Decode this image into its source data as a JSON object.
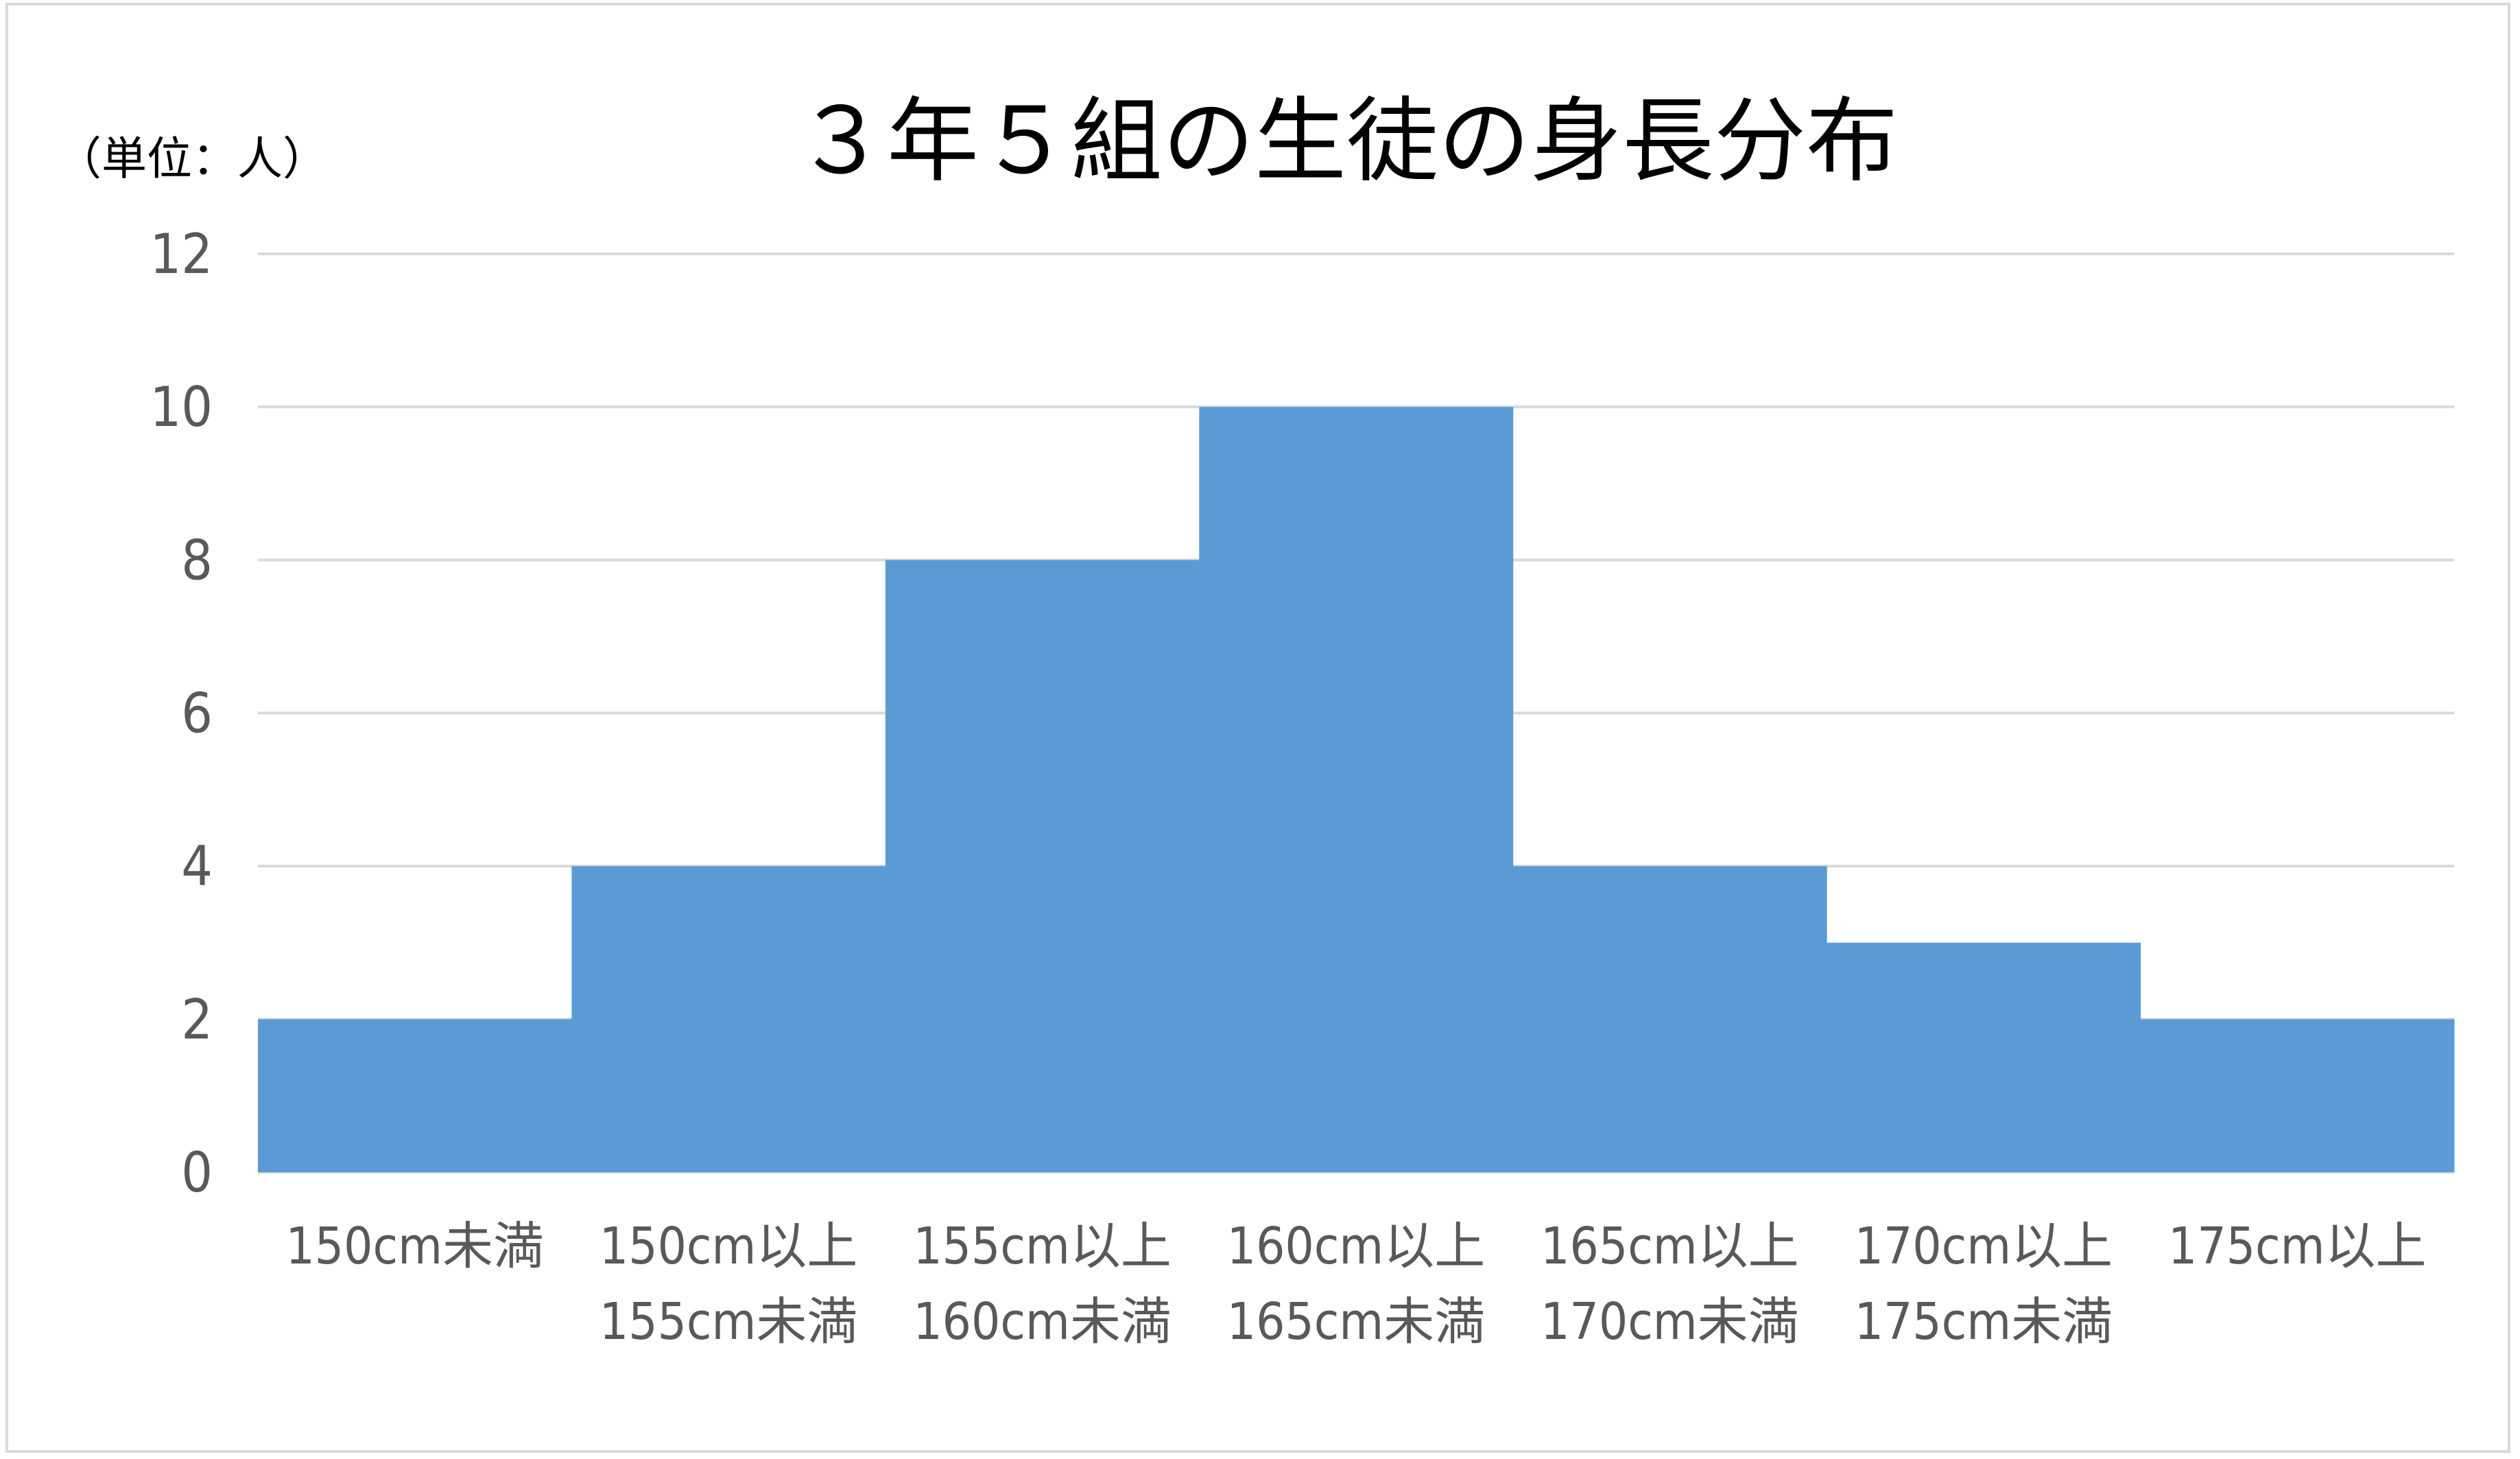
{
  "chart_data": {
    "type": "bar",
    "title": "３年５組の生徒の身長分布",
    "unit_label": "（単位：人）",
    "categories": [
      [
        "150cm未満"
      ],
      [
        "150cm以上",
        "155cm未満"
      ],
      [
        "155cm以上",
        "160cm未満"
      ],
      [
        "160cm以上",
        "165cm未満"
      ],
      [
        "165cm以上",
        "170cm未満"
      ],
      [
        "170cm以上",
        "175cm未満"
      ],
      [
        "175cm以上"
      ]
    ],
    "values": [
      2,
      4,
      8,
      10,
      4,
      3,
      2
    ],
    "ylim": [
      0,
      12
    ],
    "yticks": [
      0,
      2,
      4,
      6,
      8,
      10,
      12
    ],
    "grid": true,
    "legend": "none",
    "bar_gap": 0,
    "colors": {
      "bar": "#5b9bd5",
      "grid": "#d9d9d9",
      "tick_text": "#595959",
      "title": "#000000"
    }
  }
}
